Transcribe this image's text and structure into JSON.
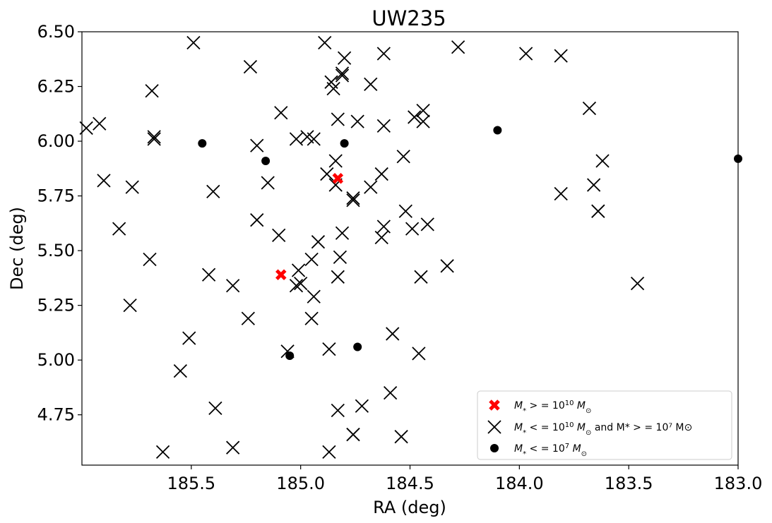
{
  "chart_data": {
    "type": "scatter",
    "title": "UW235",
    "xlabel": "RA (deg)",
    "ylabel": "Dec (deg)",
    "xlim": [
      186.0,
      183.0
    ],
    "ylim": [
      4.52,
      6.5
    ],
    "x_inverted": true,
    "grid": false,
    "legend_position": "lower-right",
    "xticks": [
      185.5,
      185.0,
      184.5,
      184.0,
      183.5,
      183.0
    ],
    "xtick_labels": [
      "185.5",
      "185.0",
      "184.5",
      "184.0",
      "183.5",
      "183.0"
    ],
    "yticks": [
      4.75,
      5.0,
      5.25,
      5.5,
      5.75,
      6.0,
      6.25,
      6.5
    ],
    "ytick_labels": [
      "4.75",
      "5.00",
      "5.25",
      "5.50",
      "5.75",
      "6.00",
      "6.25",
      "6.50"
    ],
    "legend": {
      "entries": [
        {
          "symbol": "red-x",
          "pre": "M",
          "sub": "*",
          "mid": " > = 10",
          "sup": "10",
          "post": "M",
          "post_sub": "⊙",
          "tail": ""
        },
        {
          "symbol": "black-x",
          "pre": "M",
          "sub": "*",
          "mid": " < = 10",
          "sup": "10",
          "post": "M",
          "post_sub": "⊙",
          "tail": "  and  M* > = 10⁷ M⊙"
        },
        {
          "symbol": "black-dot",
          "pre": "M",
          "sub": "*",
          "mid": " < = 10",
          "sup": "7",
          "post": "M",
          "post_sub": "⊙",
          "tail": ""
        }
      ]
    },
    "series": [
      {
        "name": "M* >= 10^10 Msun",
        "marker": "thick-x",
        "color": "#ff0000",
        "points": [
          [
            184.83,
            5.83
          ],
          [
            185.09,
            5.39
          ]
        ]
      },
      {
        "name": "10^7 <= M* <= 10^10 Msun",
        "marker": "x",
        "color": "#000000",
        "points": [
          [
            185.49,
            6.45
          ],
          [
            184.89,
            6.45
          ],
          [
            184.62,
            6.4
          ],
          [
            184.28,
            6.43
          ],
          [
            183.97,
            6.4
          ],
          [
            183.81,
            6.39
          ],
          [
            184.8,
            6.38
          ],
          [
            184.81,
            6.31
          ],
          [
            184.81,
            6.3
          ],
          [
            185.23,
            6.34
          ],
          [
            184.86,
            6.27
          ],
          [
            184.85,
            6.24
          ],
          [
            184.68,
            6.26
          ],
          [
            185.68,
            6.23
          ],
          [
            183.68,
            6.15
          ],
          [
            185.09,
            6.13
          ],
          [
            184.44,
            6.14
          ],
          [
            184.48,
            6.11
          ],
          [
            184.44,
            6.09
          ],
          [
            184.83,
            6.1
          ],
          [
            184.74,
            6.09
          ],
          [
            184.62,
            6.07
          ],
          [
            185.98,
            6.06
          ],
          [
            185.92,
            6.08
          ],
          [
            185.67,
            6.01
          ],
          [
            185.67,
            6.02
          ],
          [
            184.97,
            6.02
          ],
          [
            184.94,
            6.01
          ],
          [
            185.02,
            6.01
          ],
          [
            185.2,
            5.98
          ],
          [
            184.53,
            5.93
          ],
          [
            183.62,
            5.91
          ],
          [
            184.84,
            5.91
          ],
          [
            184.88,
            5.85
          ],
          [
            184.63,
            5.85
          ],
          [
            185.9,
            5.82
          ],
          [
            185.15,
            5.81
          ],
          [
            184.84,
            5.8
          ],
          [
            183.66,
            5.8
          ],
          [
            185.77,
            5.79
          ],
          [
            184.68,
            5.79
          ],
          [
            183.81,
            5.76
          ],
          [
            185.4,
            5.77
          ],
          [
            184.76,
            5.74
          ],
          [
            184.76,
            5.73
          ],
          [
            183.64,
            5.68
          ],
          [
            183.64,
            5.68
          ],
          [
            184.52,
            5.68
          ],
          [
            185.2,
            5.64
          ],
          [
            184.62,
            5.61
          ],
          [
            184.42,
            5.62
          ],
          [
            184.49,
            5.6
          ],
          [
            185.83,
            5.6
          ],
          [
            185.1,
            5.57
          ],
          [
            184.81,
            5.58
          ],
          [
            184.63,
            5.56
          ],
          [
            184.92,
            5.54
          ],
          [
            184.95,
            5.46
          ],
          [
            184.82,
            5.47
          ],
          [
            185.69,
            5.46
          ],
          [
            184.33,
            5.43
          ],
          [
            185.01,
            5.41
          ],
          [
            185.42,
            5.39
          ],
          [
            184.83,
            5.38
          ],
          [
            184.45,
            5.38
          ],
          [
            185.0,
            5.35
          ],
          [
            185.02,
            5.34
          ],
          [
            185.31,
            5.34
          ],
          [
            183.46,
            5.35
          ],
          [
            184.94,
            5.29
          ],
          [
            185.78,
            5.25
          ],
          [
            185.24,
            5.19
          ],
          [
            184.95,
            5.19
          ],
          [
            184.58,
            5.12
          ],
          [
            185.51,
            5.1
          ],
          [
            184.87,
            5.05
          ],
          [
            185.06,
            5.04
          ],
          [
            184.46,
            5.03
          ],
          [
            185.55,
            4.95
          ],
          [
            184.59,
            4.85
          ],
          [
            184.72,
            4.79
          ],
          [
            185.39,
            4.78
          ],
          [
            184.83,
            4.77
          ],
          [
            184.76,
            4.66
          ],
          [
            184.76,
            4.66
          ],
          [
            184.54,
            4.65
          ],
          [
            185.31,
            4.6
          ],
          [
            185.63,
            4.58
          ],
          [
            184.87,
            4.58
          ]
        ]
      },
      {
        "name": "M* <= 10^7 Msun",
        "marker": "dot",
        "color": "#000000",
        "points": [
          [
            185.45,
            5.99
          ],
          [
            185.16,
            5.91
          ],
          [
            184.8,
            5.99
          ],
          [
            184.1,
            6.05
          ],
          [
            183.0,
            5.92
          ],
          [
            185.05,
            5.02
          ],
          [
            184.74,
            5.06
          ]
        ]
      }
    ]
  }
}
